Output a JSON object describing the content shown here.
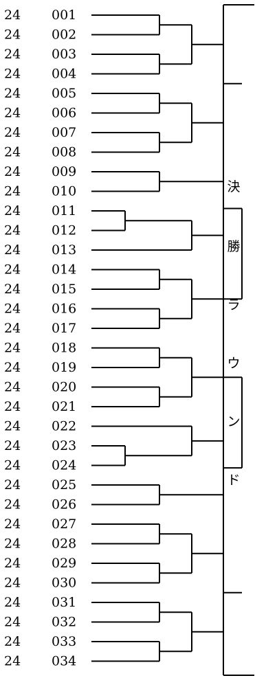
{
  "bracket": {
    "entries": [
      {
        "group": "24",
        "number": "001"
      },
      {
        "group": "24",
        "number": "002"
      },
      {
        "group": "24",
        "number": "003"
      },
      {
        "group": "24",
        "number": "004"
      },
      {
        "group": "24",
        "number": "005"
      },
      {
        "group": "24",
        "number": "006"
      },
      {
        "group": "24",
        "number": "007"
      },
      {
        "group": "24",
        "number": "008"
      },
      {
        "group": "24",
        "number": "009"
      },
      {
        "group": "24",
        "number": "010"
      },
      {
        "group": "24",
        "number": "011"
      },
      {
        "group": "24",
        "number": "012"
      },
      {
        "group": "24",
        "number": "013"
      },
      {
        "group": "24",
        "number": "014"
      },
      {
        "group": "24",
        "number": "015"
      },
      {
        "group": "24",
        "number": "016"
      },
      {
        "group": "24",
        "number": "017"
      },
      {
        "group": "24",
        "number": "018"
      },
      {
        "group": "24",
        "number": "019"
      },
      {
        "group": "24",
        "number": "020"
      },
      {
        "group": "24",
        "number": "021"
      },
      {
        "group": "24",
        "number": "022"
      },
      {
        "group": "24",
        "number": "023"
      },
      {
        "group": "24",
        "number": "024"
      },
      {
        "group": "24",
        "number": "025"
      },
      {
        "group": "24",
        "number": "026"
      },
      {
        "group": "24",
        "number": "027"
      },
      {
        "group": "24",
        "number": "028"
      },
      {
        "group": "24",
        "number": "029"
      },
      {
        "group": "24",
        "number": "030"
      },
      {
        "group": "24",
        "number": "031"
      },
      {
        "group": "24",
        "number": "032"
      },
      {
        "group": "24",
        "number": "033"
      },
      {
        "group": "24",
        "number": "034"
      }
    ],
    "round_label": [
      "決",
      "勝",
      "ラ",
      "ウ",
      "ン",
      "ド"
    ]
  }
}
